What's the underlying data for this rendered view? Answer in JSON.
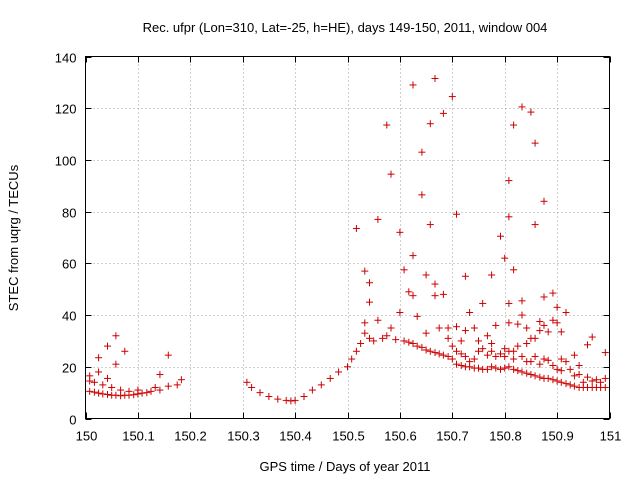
{
  "chart_data": {
    "type": "scatter",
    "title": "Rec. ufpr (Lon=310, Lat=-25, h=HE), days 149-150, 2011, window 004",
    "xlabel": "GPS time / Days of year 2011",
    "ylabel": "STEC from uqrg / TECUs",
    "xlim": [
      150,
      151
    ],
    "ylim": [
      0,
      140
    ],
    "xticks": [
      150,
      150.1,
      150.2,
      150.3,
      150.4,
      150.5,
      150.6,
      150.7,
      150.8,
      150.9,
      151
    ],
    "xtick_labels": [
      "150",
      "150.1",
      "150.2",
      "150.3",
      "150.4",
      "150.5",
      "150.6",
      "150.7",
      "150.8",
      "150.9",
      "151"
    ],
    "yticks": [
      0,
      20,
      40,
      60,
      80,
      100,
      120,
      140
    ],
    "ytick_labels": [
      "0",
      "20",
      "40",
      "60",
      "80",
      "100",
      "120",
      "140"
    ],
    "grid": true,
    "marker": "+",
    "color": "#cc0000",
    "series": [
      {
        "name": "STEC",
        "points": [
          [
            150.008,
            10.5
          ],
          [
            150.008,
            14.5
          ],
          [
            150.008,
            16.5
          ],
          [
            150.017,
            10.2
          ],
          [
            150.017,
            14.0
          ],
          [
            150.025,
            9.8
          ],
          [
            150.025,
            18.0
          ],
          [
            150.025,
            23.5
          ],
          [
            150.033,
            9.5
          ],
          [
            150.033,
            13.0
          ],
          [
            150.042,
            9.3
          ],
          [
            150.042,
            15.5
          ],
          [
            150.042,
            28.0
          ],
          [
            150.05,
            9.0
          ],
          [
            150.05,
            12.0
          ],
          [
            150.058,
            9.0
          ],
          [
            150.058,
            21.0
          ],
          [
            150.058,
            32.0
          ],
          [
            150.067,
            8.8
          ],
          [
            150.067,
            11.0
          ],
          [
            150.075,
            9.0
          ],
          [
            150.075,
            26.0
          ],
          [
            150.083,
            9.0
          ],
          [
            150.083,
            10.5
          ],
          [
            150.092,
            9.2
          ],
          [
            150.1,
            9.5
          ],
          [
            150.1,
            11.0
          ],
          [
            150.108,
            9.8
          ],
          [
            150.117,
            10.0
          ],
          [
            150.125,
            10.5
          ],
          [
            150.133,
            12.0
          ],
          [
            150.142,
            11.0
          ],
          [
            150.142,
            17.0
          ],
          [
            150.158,
            12.5
          ],
          [
            150.158,
            24.5
          ],
          [
            150.175,
            13.0
          ],
          [
            150.183,
            15.0
          ],
          [
            150.308,
            14.0
          ],
          [
            150.317,
            12.0
          ],
          [
            150.333,
            10.0
          ],
          [
            150.35,
            8.5
          ],
          [
            150.367,
            7.5
          ],
          [
            150.383,
            7.0
          ],
          [
            150.392,
            6.8
          ],
          [
            150.4,
            7.0
          ],
          [
            150.417,
            8.5
          ],
          [
            150.433,
            11.0
          ],
          [
            150.45,
            13.0
          ],
          [
            150.467,
            15.5
          ],
          [
            150.483,
            18.0
          ],
          [
            150.5,
            20.0
          ],
          [
            150.508,
            23.0
          ],
          [
            150.517,
            26.0
          ],
          [
            150.517,
            73.5
          ],
          [
            150.525,
            29.0
          ],
          [
            150.533,
            33.0
          ],
          [
            150.533,
            37.0
          ],
          [
            150.533,
            57.0
          ],
          [
            150.542,
            31.0
          ],
          [
            150.542,
            45.0
          ],
          [
            150.542,
            52.5
          ],
          [
            150.55,
            30.0
          ],
          [
            150.558,
            38.0
          ],
          [
            150.558,
            77.0
          ],
          [
            150.567,
            31.0
          ],
          [
            150.575,
            32.0
          ],
          [
            150.575,
            113.5
          ],
          [
            150.583,
            35.0
          ],
          [
            150.583,
            94.5
          ],
          [
            150.592,
            30.5
          ],
          [
            150.6,
            41.0
          ],
          [
            150.6,
            72.0
          ],
          [
            150.608,
            30.0
          ],
          [
            150.608,
            57.5
          ],
          [
            150.617,
            29.5
          ],
          [
            150.617,
            49.0
          ],
          [
            150.625,
            29.0
          ],
          [
            150.625,
            47.5
          ],
          [
            150.625,
            63.0
          ],
          [
            150.625,
            129.0
          ],
          [
            150.633,
            28.0
          ],
          [
            150.633,
            39.5
          ],
          [
            150.642,
            27.5
          ],
          [
            150.642,
            86.5
          ],
          [
            150.642,
            103.0
          ],
          [
            150.65,
            26.5
          ],
          [
            150.65,
            33.0
          ],
          [
            150.65,
            55.5
          ],
          [
            150.658,
            26.0
          ],
          [
            150.658,
            75.0
          ],
          [
            150.658,
            114.0
          ],
          [
            150.667,
            25.5
          ],
          [
            150.667,
            47.5
          ],
          [
            150.667,
            52.0
          ],
          [
            150.667,
            131.5
          ],
          [
            150.675,
            25.0
          ],
          [
            150.675,
            35.0
          ],
          [
            150.683,
            24.5
          ],
          [
            150.683,
            118.0
          ],
          [
            150.683,
            48.0
          ],
          [
            150.692,
            24.0
          ],
          [
            150.692,
            31.0
          ],
          [
            150.692,
            35.0
          ],
          [
            150.7,
            23.0
          ],
          [
            150.7,
            28.0
          ],
          [
            150.7,
            124.5
          ],
          [
            150.708,
            21.0
          ],
          [
            150.708,
            26.0
          ],
          [
            150.708,
            35.5
          ],
          [
            150.708,
            79.0
          ],
          [
            150.717,
            20.5
          ],
          [
            150.717,
            25.0
          ],
          [
            150.717,
            30.0
          ],
          [
            150.725,
            20.0
          ],
          [
            150.725,
            24.0
          ],
          [
            150.725,
            34.0
          ],
          [
            150.725,
            55.0
          ],
          [
            150.733,
            20.0
          ],
          [
            150.733,
            22.0
          ],
          [
            150.733,
            41.0
          ],
          [
            150.742,
            19.5
          ],
          [
            150.742,
            23.0
          ],
          [
            150.742,
            35.0
          ],
          [
            150.75,
            19.5
          ],
          [
            150.75,
            26.0
          ],
          [
            150.75,
            30.0
          ],
          [
            150.758,
            19.0
          ],
          [
            150.758,
            27.0
          ],
          [
            150.758,
            44.5
          ],
          [
            150.767,
            19.0
          ],
          [
            150.767,
            24.5
          ],
          [
            150.767,
            32.0
          ],
          [
            150.775,
            20.0
          ],
          [
            150.775,
            26.0
          ],
          [
            150.775,
            29.0
          ],
          [
            150.775,
            55.5
          ],
          [
            150.783,
            19.5
          ],
          [
            150.783,
            24.0
          ],
          [
            150.783,
            36.0
          ],
          [
            150.792,
            19.0
          ],
          [
            150.792,
            25.0
          ],
          [
            150.792,
            70.5
          ],
          [
            150.8,
            19.5
          ],
          [
            150.8,
            24.0
          ],
          [
            150.8,
            27.0
          ],
          [
            150.8,
            62.0
          ],
          [
            150.808,
            20.0
          ],
          [
            150.808,
            26.0
          ],
          [
            150.808,
            37.0
          ],
          [
            150.808,
            44.5
          ],
          [
            150.808,
            78.0
          ],
          [
            150.808,
            92.0
          ],
          [
            150.817,
            19.0
          ],
          [
            150.817,
            23.0
          ],
          [
            150.817,
            26.0
          ],
          [
            150.817,
            57.5
          ],
          [
            150.817,
            113.5
          ],
          [
            150.825,
            18.5
          ],
          [
            150.825,
            28.0
          ],
          [
            150.825,
            36.5
          ],
          [
            150.833,
            18.0
          ],
          [
            150.833,
            24.0
          ],
          [
            150.833,
            40.0
          ],
          [
            150.833,
            45.5
          ],
          [
            150.833,
            120.5
          ],
          [
            150.842,
            17.5
          ],
          [
            150.842,
            22.0
          ],
          [
            150.842,
            29.0
          ],
          [
            150.842,
            35.0
          ],
          [
            150.85,
            17.0
          ],
          [
            150.85,
            22.0
          ],
          [
            150.85,
            31.0
          ],
          [
            150.85,
            118.5
          ],
          [
            150.858,
            16.5
          ],
          [
            150.858,
            24.0
          ],
          [
            150.858,
            31.0
          ],
          [
            150.858,
            75.0
          ],
          [
            150.858,
            106.5
          ],
          [
            150.867,
            16.0
          ],
          [
            150.867,
            21.0
          ],
          [
            150.867,
            34.0
          ],
          [
            150.867,
            37.5
          ],
          [
            150.875,
            15.5
          ],
          [
            150.875,
            23.0
          ],
          [
            150.875,
            36.0
          ],
          [
            150.875,
            47.0
          ],
          [
            150.875,
            84.0
          ],
          [
            150.883,
            15.5
          ],
          [
            150.883,
            22.5
          ],
          [
            150.883,
            33.5
          ],
          [
            150.892,
            15.0
          ],
          [
            150.892,
            20.5
          ],
          [
            150.892,
            38.0
          ],
          [
            150.892,
            48.5
          ],
          [
            150.9,
            14.5
          ],
          [
            150.9,
            19.0
          ],
          [
            150.9,
            37.0
          ],
          [
            150.9,
            43.0
          ],
          [
            150.908,
            14.0
          ],
          [
            150.908,
            18.5
          ],
          [
            150.908,
            23.0
          ],
          [
            150.908,
            33.5
          ],
          [
            150.917,
            13.5
          ],
          [
            150.917,
            22.0
          ],
          [
            150.917,
            41.0
          ],
          [
            150.925,
            13.0
          ],
          [
            150.925,
            19.0
          ],
          [
            150.933,
            12.5
          ],
          [
            150.933,
            16.5
          ],
          [
            150.933,
            24.5
          ],
          [
            150.942,
            12.0
          ],
          [
            150.942,
            17.0
          ],
          [
            150.942,
            20.5
          ],
          [
            150.95,
            12.0
          ],
          [
            150.95,
            14.0
          ],
          [
            150.958,
            12.0
          ],
          [
            150.958,
            16.0
          ],
          [
            150.958,
            28.5
          ],
          [
            150.967,
            12.0
          ],
          [
            150.967,
            14.5
          ],
          [
            150.967,
            31.5
          ],
          [
            150.975,
            12.0
          ],
          [
            150.975,
            15.0
          ],
          [
            150.983,
            12.0
          ],
          [
            150.983,
            14.0
          ],
          [
            150.992,
            12.0
          ],
          [
            150.992,
            15.5
          ],
          [
            150.992,
            25.5
          ]
        ]
      }
    ]
  }
}
